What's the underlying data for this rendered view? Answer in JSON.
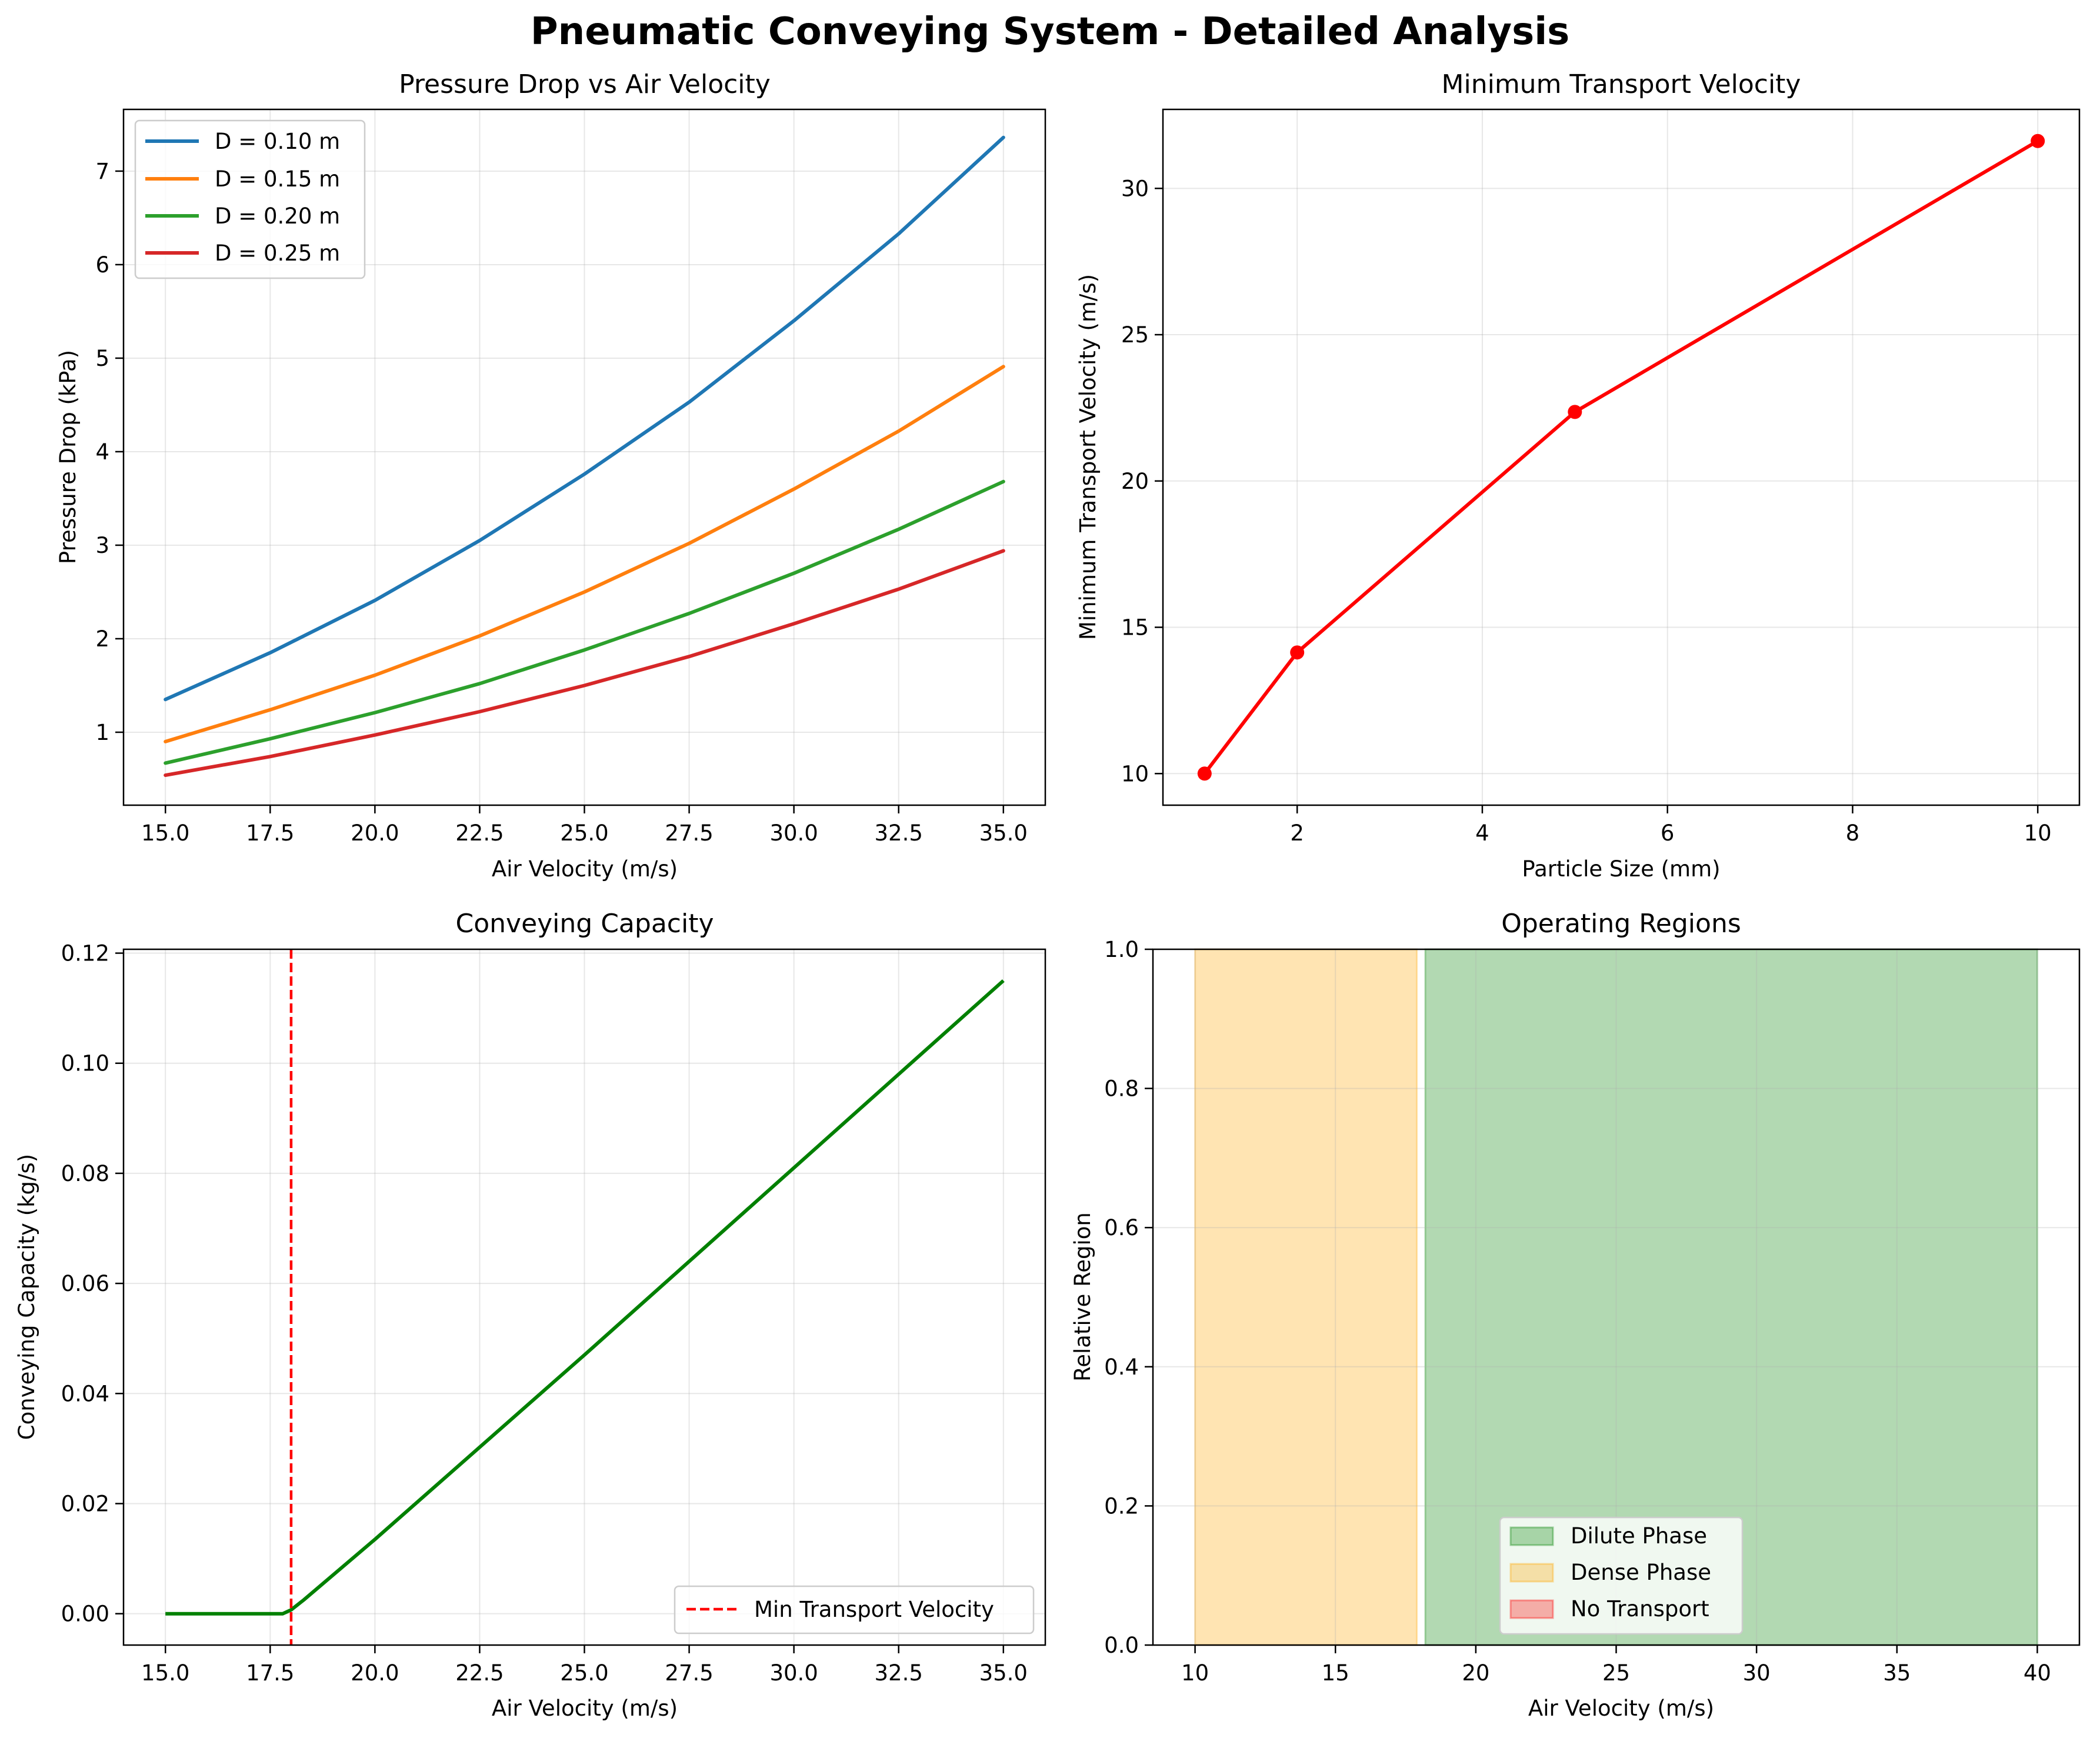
{
  "figure": {
    "suptitle": "Pneumatic Conveying System - Detailed Analysis"
  },
  "colors": {
    "tab_blue": "#1f77b4",
    "tab_orange": "#ff7f0e",
    "tab_green": "#2ca02c",
    "tab_red": "#d62728",
    "red": "#ff0000",
    "green": "#008000",
    "dilute_fill": "#008000",
    "dense_fill": "#ffa500",
    "no_transport_fill": "#ff0000"
  },
  "chart_data": [
    {
      "id": "pressure",
      "type": "line",
      "title": "Pressure Drop vs Air Velocity",
      "xlabel": "Air Velocity (m/s)",
      "ylabel": "Pressure Drop (kPa)",
      "xlim": [
        14.0,
        36.0
      ],
      "ylim": [
        0.22,
        7.66
      ],
      "xticks": [
        15.0,
        17.5,
        20.0,
        22.5,
        25.0,
        27.5,
        30.0,
        32.5,
        35.0
      ],
      "xtick_labels": [
        "15.0",
        "17.5",
        "20.0",
        "22.5",
        "25.0",
        "27.5",
        "30.0",
        "32.5",
        "35.0"
      ],
      "yticks": [
        1,
        2,
        3,
        4,
        5,
        6,
        7
      ],
      "ytick_labels": [
        "1",
        "2",
        "3",
        "4",
        "5",
        "6",
        "7"
      ],
      "grid": true,
      "legend_position": "upper-left",
      "x": [
        15,
        17.5,
        20,
        22.5,
        25,
        27.5,
        30,
        32.5,
        35
      ],
      "series": [
        {
          "name": "D = 0.10 m",
          "color": "#1f77b4",
          "values": [
            1.35,
            1.85,
            2.41,
            3.05,
            3.76,
            4.53,
            5.4,
            6.33,
            7.36
          ]
        },
        {
          "name": "D = 0.15 m",
          "color": "#ff7f0e",
          "values": [
            0.9,
            1.24,
            1.61,
            2.03,
            2.5,
            3.02,
            3.6,
            4.22,
            4.91
          ]
        },
        {
          "name": "D = 0.20 m",
          "color": "#2ca02c",
          "values": [
            0.67,
            0.93,
            1.21,
            1.52,
            1.88,
            2.27,
            2.7,
            3.17,
            3.68
          ]
        },
        {
          "name": "D = 0.25 m",
          "color": "#d62728",
          "values": [
            0.54,
            0.74,
            0.97,
            1.22,
            1.5,
            1.81,
            2.16,
            2.53,
            2.94
          ]
        }
      ]
    },
    {
      "id": "mtv",
      "type": "line",
      "title": "Minimum Transport Velocity",
      "xlabel": "Particle Size (mm)",
      "ylabel": "Minimum Transport Velocity (m/s)",
      "xlim": [
        0.55,
        10.45
      ],
      "ylim": [
        8.92,
        32.7
      ],
      "xticks": [
        2,
        4,
        6,
        8,
        10
      ],
      "xtick_labels": [
        "2",
        "4",
        "6",
        "8",
        "10"
      ],
      "yticks": [
        10,
        15,
        20,
        25,
        30
      ],
      "ytick_labels": [
        "10",
        "15",
        "20",
        "25",
        "30"
      ],
      "grid": true,
      "markers": true,
      "x": [
        1,
        2,
        5,
        10
      ],
      "series": [
        {
          "name": "",
          "color": "#ff0000",
          "values": [
            10.0,
            14.14,
            22.36,
            31.62
          ]
        }
      ]
    },
    {
      "id": "capacity",
      "type": "line",
      "title": "Conveying Capacity",
      "xlabel": "Air Velocity (m/s)",
      "ylabel": "Conveying Capacity (kg/s)",
      "xlim": [
        14.0,
        36.0
      ],
      "ylim": [
        -0.0057,
        0.1207
      ],
      "xticks": [
        15.0,
        17.5,
        20.0,
        22.5,
        25.0,
        27.5,
        30.0,
        32.5,
        35.0
      ],
      "xtick_labels": [
        "15.0",
        "17.5",
        "20.0",
        "22.5",
        "25.0",
        "27.5",
        "30.0",
        "32.5",
        "35.0"
      ],
      "yticks": [
        0.0,
        0.02,
        0.04,
        0.06,
        0.08,
        0.1,
        0.12
      ],
      "ytick_labels": [
        "0.00",
        "0.02",
        "0.04",
        "0.06",
        "0.08",
        "0.10",
        "0.12"
      ],
      "grid": true,
      "legend_position": "lower-right",
      "x": [
        15,
        17.8,
        18.0,
        18.3,
        20,
        25,
        30,
        35
      ],
      "series": [
        {
          "name": "",
          "color": "#008000",
          "values": [
            0.0,
            0.0,
            0.0007,
            0.0025,
            0.0135,
            0.047,
            0.081,
            0.115
          ]
        }
      ],
      "vline": {
        "name": "Min Transport Velocity",
        "x": 18.0,
        "color": "#ff0000",
        "style": "dashed"
      }
    },
    {
      "id": "regions",
      "type": "area",
      "title": "Operating Regions",
      "xlabel": "Air Velocity (m/s)",
      "ylabel": "Relative Region",
      "xlim": [
        8.5,
        41.5
      ],
      "ylim": [
        0.0,
        1.0
      ],
      "xticks": [
        10,
        15,
        20,
        25,
        30,
        35,
        40
      ],
      "xtick_labels": [
        "10",
        "15",
        "20",
        "25",
        "30",
        "35",
        "40"
      ],
      "yticks": [
        0.0,
        0.2,
        0.4,
        0.6,
        0.8,
        1.0
      ],
      "ytick_labels": [
        "0.0",
        "0.2",
        "0.4",
        "0.6",
        "0.8",
        "1.0"
      ],
      "grid": true,
      "legend_position": "lower-center",
      "regions": [
        {
          "name": "Dilute Phase",
          "x_start": 18.2,
          "x_end": 40.0,
          "color": "#008000"
        },
        {
          "name": "Dense Phase",
          "x_start": 10.0,
          "x_end": 17.9,
          "color": "#ffa500"
        },
        {
          "name": "No Transport",
          "x_start": null,
          "x_end": null,
          "color": "#ff0000"
        }
      ]
    }
  ]
}
